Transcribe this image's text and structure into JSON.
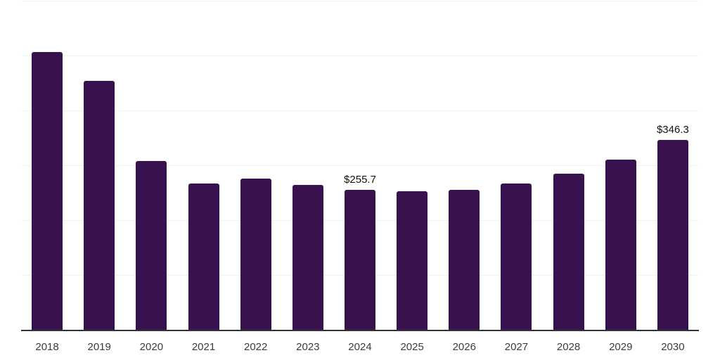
{
  "chart_data": {
    "type": "bar",
    "title": "",
    "xlabel": "",
    "ylabel": "",
    "categories": [
      "2018",
      "2019",
      "2020",
      "2021",
      "2022",
      "2023",
      "2024",
      "2025",
      "2026",
      "2027",
      "2028",
      "2029",
      "2030"
    ],
    "values": [
      506.8,
      454.0,
      307.5,
      266.5,
      275.5,
      264.0,
      255.7,
      252.0,
      255.0,
      267.0,
      284.0,
      310.0,
      346.3
    ],
    "data_labels": [
      "",
      "",
      "",
      "",
      "",
      "",
      "$255.7",
      "",
      "",
      "",
      "",
      "",
      "$346.3"
    ],
    "ylim": [
      0,
      600
    ],
    "gridline_step": 100,
    "grid": true,
    "legend": false,
    "y_tick_labels_visible": false,
    "colors": {
      "bar": "#38124E",
      "grid": "#f2f2f2",
      "axis": "#333333",
      "tick_label": "#3c3c3c",
      "data_label": "#111111",
      "background": "#ffffff"
    }
  }
}
